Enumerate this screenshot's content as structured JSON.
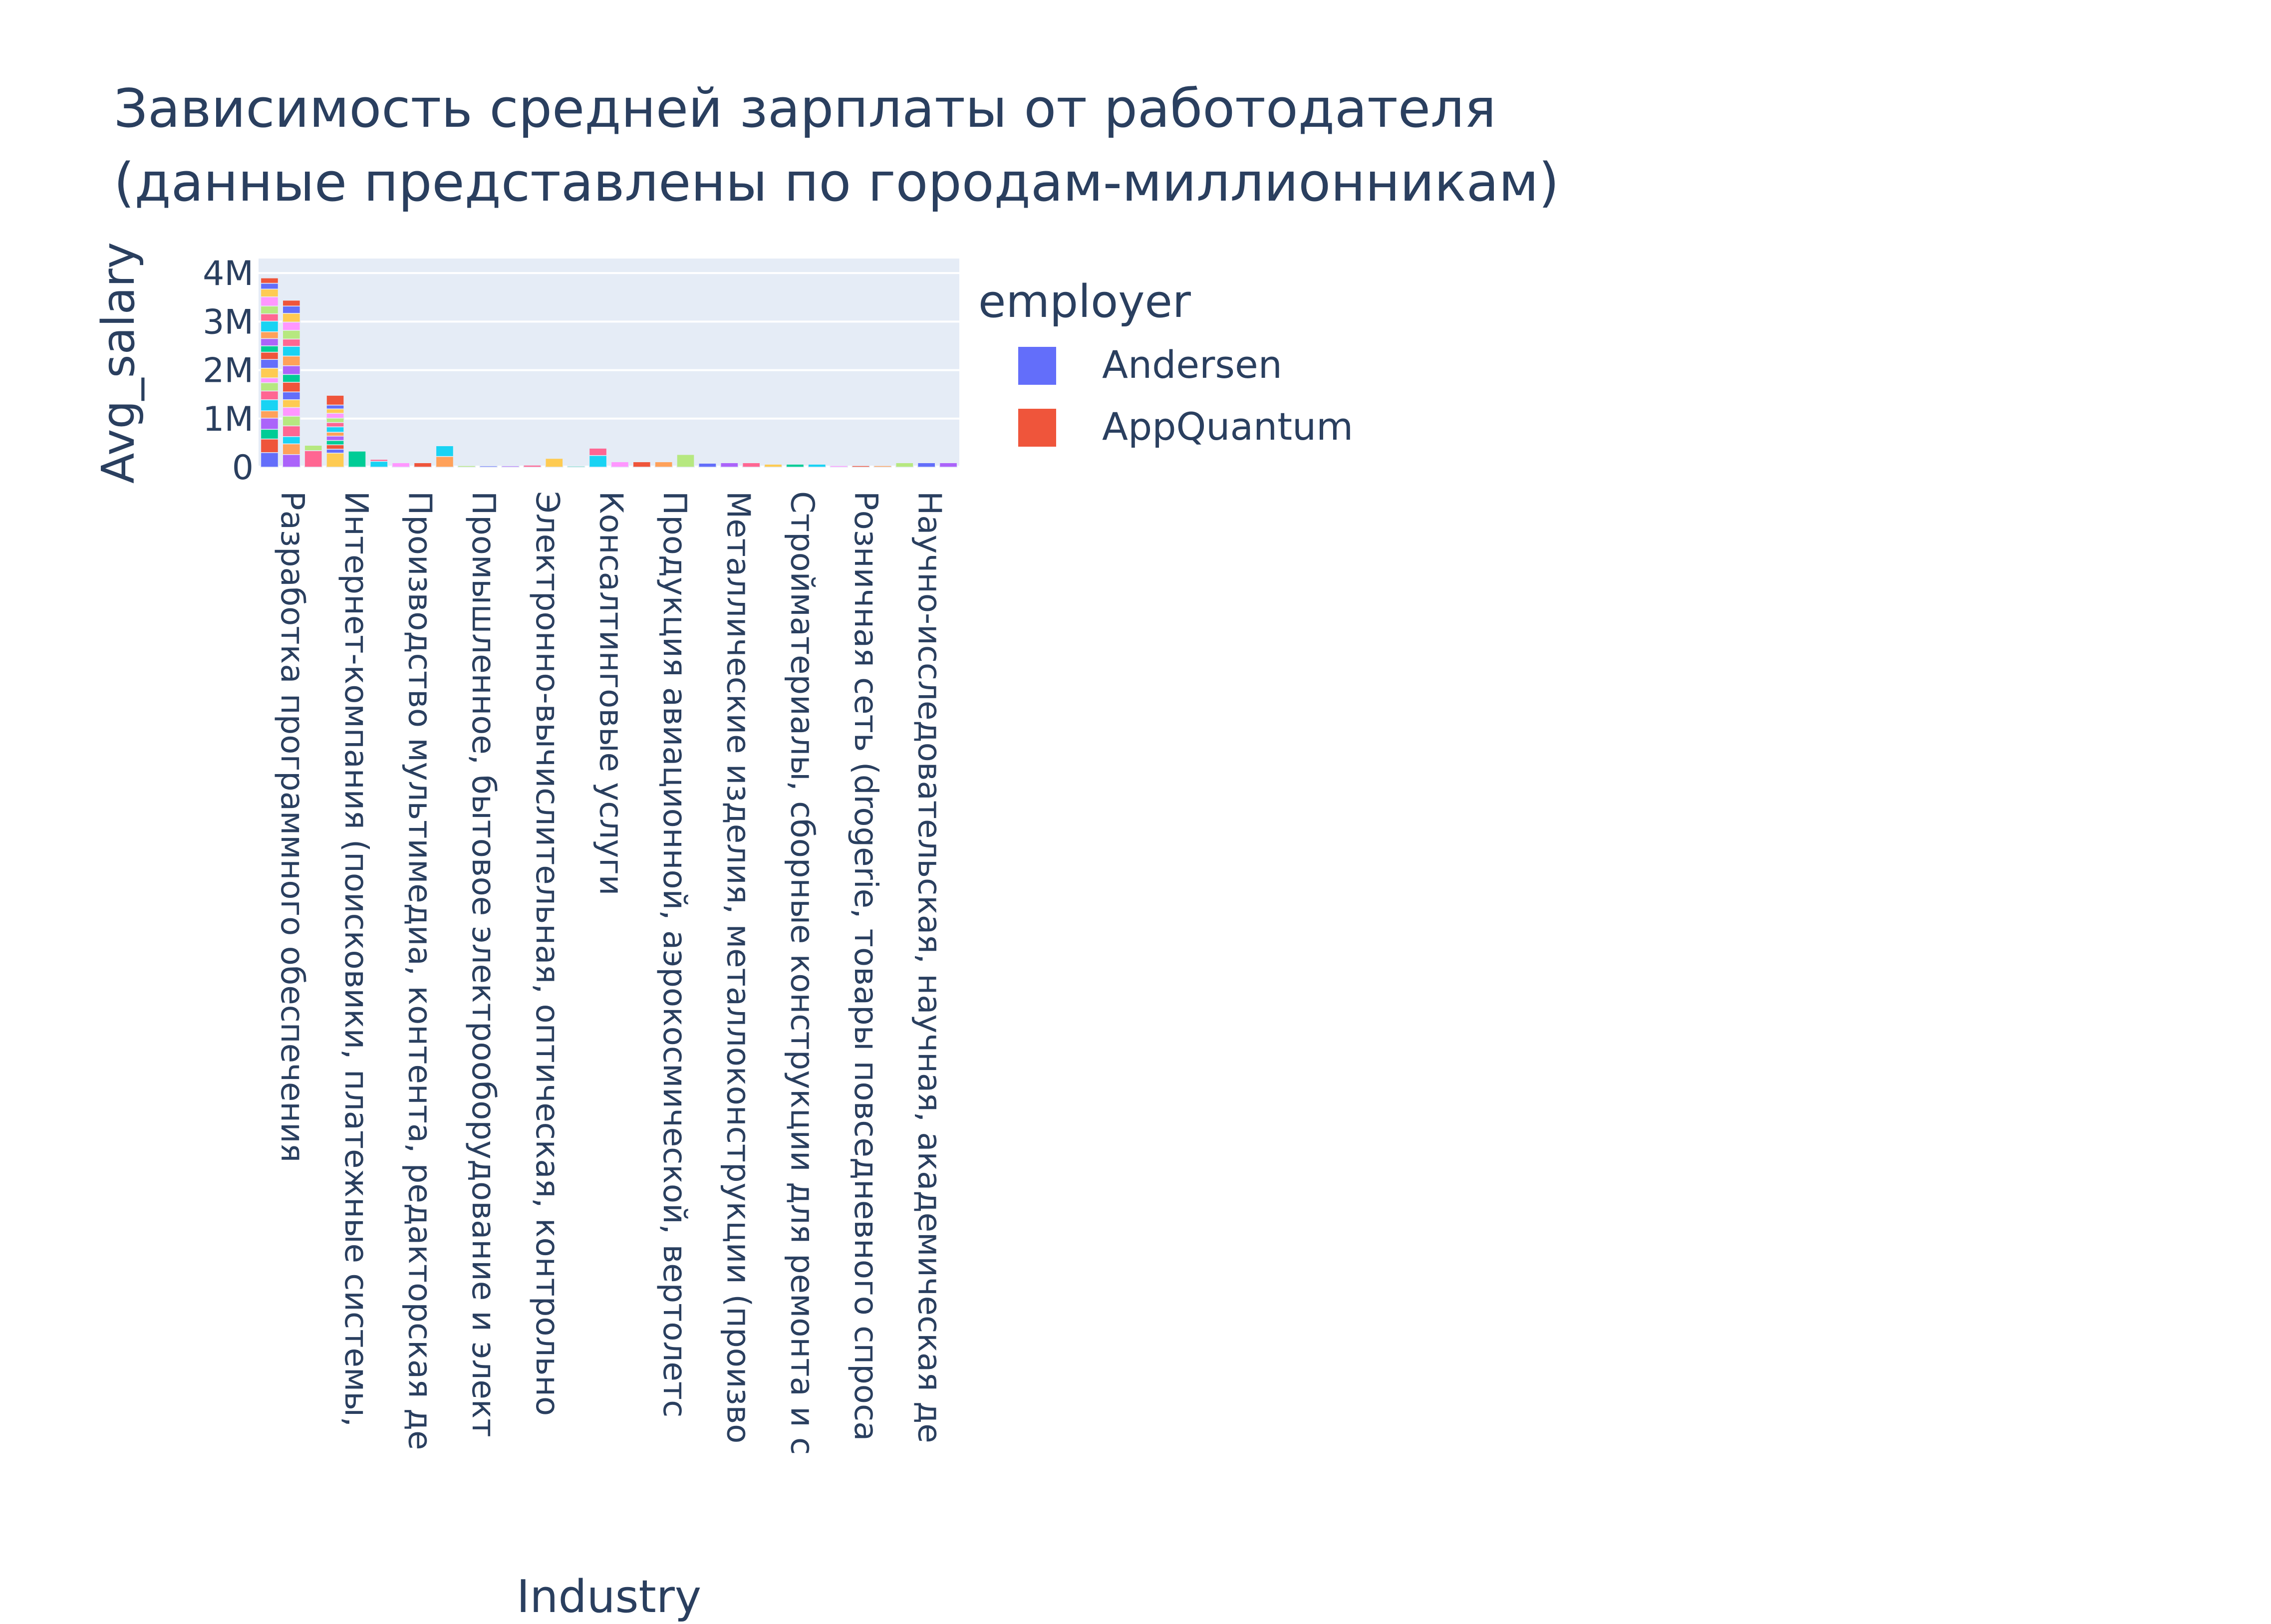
{
  "chart_data": {
    "type": "bar",
    "barmode": "stack",
    "title": "Зависимость средней зарплаты от работодателя (данные представлены по городам-миллионникам)",
    "title_lines": [
      "Зависимость средней зарплаты от работодателя",
      "(данные представлены по городам-миллионникам)"
    ],
    "xlabel": "Industry",
    "ylabel": "Avg_salary",
    "ylim": [
      0,
      4300000
    ],
    "yticks": [
      {
        "value": 0,
        "label": "0"
      },
      {
        "value": 1000000,
        "label": "1M"
      },
      {
        "value": 2000000,
        "label": "2M"
      },
      {
        "value": 3000000,
        "label": "3M"
      },
      {
        "value": 4000000,
        "label": "4M"
      }
    ],
    "grid": true,
    "legend": {
      "title": "employer",
      "position": "right",
      "entries": [
        {
          "name": "Andersen",
          "color": "#636efa"
        },
        {
          "name": "AppQuantum",
          "color": "#ef553b"
        }
      ]
    },
    "palette": [
      "#636efa",
      "#ef553b",
      "#00cc96",
      "#ab63fa",
      "#ffa15a",
      "#19d3f3",
      "#ff6692",
      "#b6e880",
      "#ff97ff",
      "#fecb52"
    ],
    "category_labels": [
      "Разработка программного обеспечения",
      "Интернет-компания (поисковики, платежные системы,",
      "Производство мультимедиа, контента, редакторская де",
      "Промышленное, бытовое электрооборудование и элект",
      "Электронно-вычислительная, оптическая, контрольно",
      "Консалтинговые услуги",
      "Продукция авиационной, аэрокосмической, вертолетс",
      "Металлические изделия, металлоконструкции (произво",
      "Стройматериалы, сборные конструкции для ремонта и с",
      "Розничная сеть (drogerie, товары повседневного спроса",
      "Научно-исследовательская, научная, академическая де"
    ],
    "bars": [
      {
        "stack": [
          300000,
          280000,
          200000,
          230000,
          150000,
          230000,
          180000,
          170000,
          100000,
          200000,
          180000,
          150000,
          130000,
          150000,
          140000,
          220000,
          150000,
          160000,
          190000,
          160000,
          120000,
          110000
        ]
      },
      {
        "stack": [
          260000,
          220000,
          150000,
          220000,
          200000,
          180000,
          160000,
          160000,
          200000,
          160000,
          180000,
          200000,
          200000,
          150000,
          180000,
          170000,
          180000,
          150000,
          120000
        ]
      },
      {
        "stack": [
          340000,
          110000
        ]
      },
      {
        "stack": [
          290000,
          80000,
          90000,
          90000,
          90000,
          80000,
          110000,
          90000,
          90000,
          100000,
          90000,
          80000,
          200000
        ]
      },
      {
        "stack": [
          330000
        ]
      },
      {
        "stack": [
          120000,
          40000
        ]
      },
      {
        "stack": [
          90000
        ]
      },
      {
        "stack": [
          90000
        ]
      },
      {
        "stack": [
          220000,
          220000
        ]
      },
      {
        "stack": [
          30000
        ]
      },
      {
        "stack": [
          25000
        ]
      },
      {
        "stack": [
          25000
        ]
      },
      {
        "stack": [
          40000
        ]
      },
      {
        "stack": [
          180000
        ]
      },
      {
        "stack": [
          20000
        ]
      },
      {
        "stack": [
          240000,
          150000
        ]
      },
      {
        "stack": [
          110000
        ]
      },
      {
        "stack": [
          110000
        ]
      },
      {
        "stack": [
          110000
        ]
      },
      {
        "stack": [
          260000
        ]
      },
      {
        "stack": [
          80000
        ]
      },
      {
        "stack": [
          90000
        ]
      },
      {
        "stack": [
          90000
        ]
      },
      {
        "stack": [
          60000
        ]
      },
      {
        "stack": [
          60000
        ]
      },
      {
        "stack": [
          60000
        ]
      },
      {
        "stack": [
          30000
        ]
      },
      {
        "stack": [
          30000
        ]
      },
      {
        "stack": [
          30000
        ]
      },
      {
        "stack": [
          90000
        ]
      },
      {
        "stack": [
          90000
        ]
      },
      {
        "stack": [
          90000
        ]
      }
    ]
  }
}
